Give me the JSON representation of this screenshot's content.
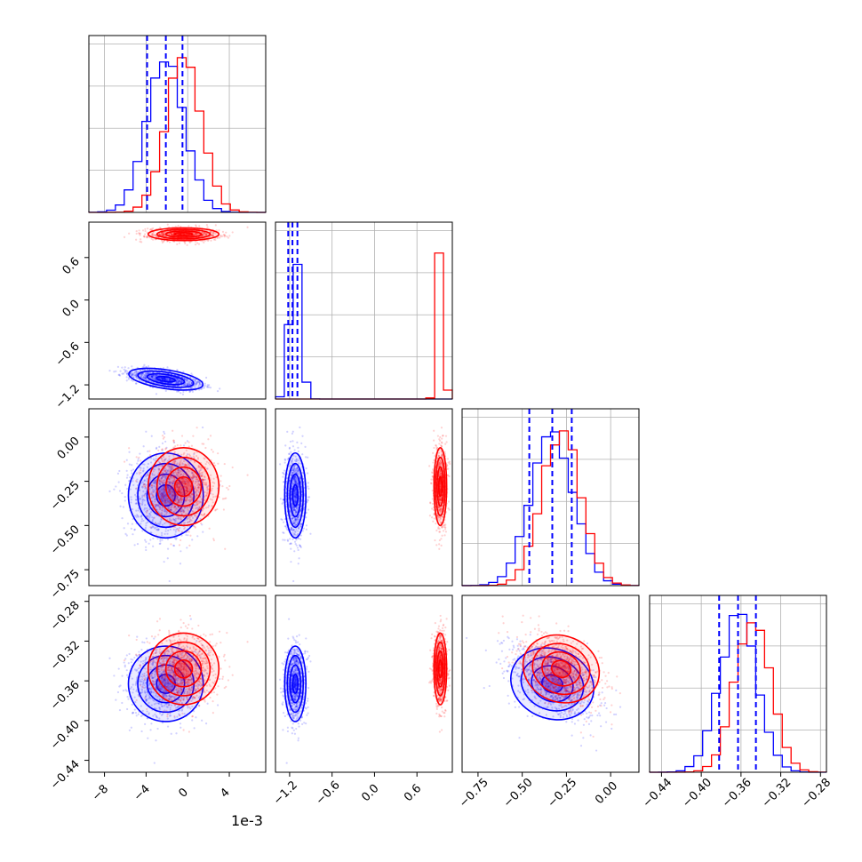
{
  "figure": {
    "offset_label": "1e-3"
  },
  "colors": {
    "series_a": "#0000ff",
    "series_b": "#ff0000",
    "grid": "#b0b0b0",
    "frame": "#000000"
  },
  "chart_data": {
    "type": "corner",
    "parameters": [
      {
        "range": [
          -9.5,
          7.5
        ],
        "ticks": [
          -8,
          -4,
          0,
          4
        ],
        "tick_labels": [
          "−8",
          "−4",
          "0",
          "4"
        ],
        "axis_scale_label": "1e-3"
      },
      {
        "range": [
          -1.4,
          1.1
        ],
        "ticks": [
          -1.2,
          -0.6,
          0.0,
          0.6
        ],
        "tick_labels": [
          "−1.2",
          "−0.6",
          "0.0",
          "0.6"
        ]
      },
      {
        "range": [
          -0.84,
          0.16
        ],
        "ticks": [
          -0.75,
          -0.5,
          -0.25,
          0.0
        ],
        "tick_labels": [
          "−0.75",
          "−0.50",
          "−0.25",
          "0.00"
        ]
      },
      {
        "range": [
          -0.452,
          -0.274
        ],
        "ticks": [
          -0.44,
          -0.4,
          -0.36,
          -0.32,
          -0.28
        ],
        "tick_labels": [
          "−0.44",
          "−0.40",
          "−0.36",
          "−0.32",
          "−0.28"
        ]
      }
    ],
    "series": [
      {
        "key": "a",
        "color": "#0000ff",
        "mean": [
          -0.0021,
          -1.12,
          -0.33,
          -0.363
        ],
        "std": [
          0.0018,
          0.075,
          0.12,
          0.019
        ],
        "quantiles_shown": true
      },
      {
        "key": "b",
        "color": "#ff0000",
        "mean": [
          -0.0004,
          0.93,
          -0.28,
          -0.348
        ],
        "std": [
          0.0017,
          0.045,
          0.11,
          0.018
        ],
        "quantiles_shown": false
      }
    ],
    "quantile_lines": [
      [
        -0.0039,
        -0.0021,
        -0.0005
      ],
      [
        -1.22,
        -1.16,
        -1.09
      ],
      [
        -0.46,
        -0.33,
        -0.22
      ],
      [
        -0.382,
        -0.363,
        -0.345
      ]
    ],
    "correlations": {
      "a": {
        "1-0": -0.6,
        "2-0": 0.0,
        "2-1": 0.0,
        "3-0": 0.0,
        "3-1": 0.0,
        "3-2": -0.5
      },
      "b": {
        "1-0": 0.0,
        "2-0": 0.0,
        "2-1": 0.0,
        "3-0": 0.0,
        "3-1": 0.0,
        "3-2": -0.5
      }
    },
    "histogram_bins": 20,
    "grid": true,
    "legend": "none"
  }
}
